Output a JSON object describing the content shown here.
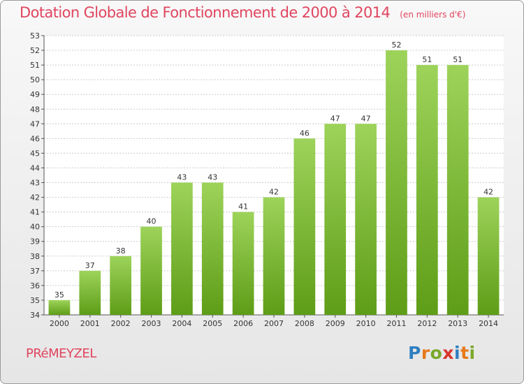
{
  "header": {
    "title": "Dotation Globale de Fonctionnement de 2000 à 2014",
    "subtitle": "(en milliers d'€)"
  },
  "footer": {
    "town": "PRéMEYZEL",
    "logo_text": "Proxiti",
    "logo_letters": [
      {
        "char": "P",
        "color": "#2f7fc1"
      },
      {
        "char": "r",
        "color": "#e8781a"
      },
      {
        "char": "o",
        "color": "#7aa829"
      },
      {
        "char": "x",
        "color": "#d8352d"
      },
      {
        "char": "i",
        "color": "#2f7fc1"
      },
      {
        "char": "t",
        "color": "#e8781a"
      },
      {
        "char": "i",
        "color": "#7aa829"
      }
    ]
  },
  "colors": {
    "title": "#e0455f",
    "bar_top": "#9dd35a",
    "bar_bottom": "#5e9d17",
    "grid": "#cccccc"
  },
  "chart_data": {
    "type": "bar",
    "title": "Dotation Globale de Fonctionnement de 2000 à 2014",
    "subtitle": "(en milliers d'€)",
    "xlabel": "",
    "ylabel": "",
    "ylim": [
      34,
      53
    ],
    "grid": true,
    "categories": [
      "2000",
      "2001",
      "2002",
      "2003",
      "2004",
      "2005",
      "2006",
      "2007",
      "2008",
      "2009",
      "2010",
      "2011",
      "2012",
      "2013",
      "2014"
    ],
    "values": [
      35,
      37,
      38,
      40,
      43,
      43,
      41,
      42,
      46,
      47,
      47,
      52,
      51,
      51,
      42
    ],
    "yticks": [
      34,
      35,
      36,
      37,
      38,
      39,
      40,
      41,
      42,
      43,
      44,
      45,
      46,
      47,
      48,
      49,
      50,
      51,
      52,
      53
    ]
  }
}
